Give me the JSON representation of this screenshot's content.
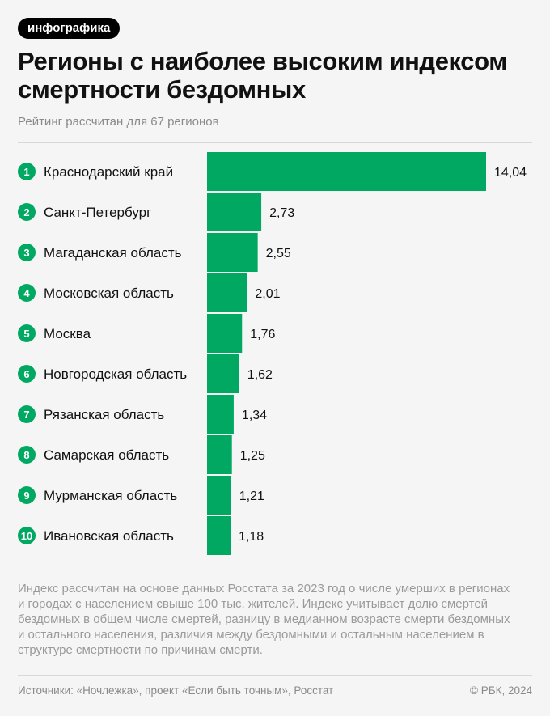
{
  "badge": "инфографика",
  "title": "Регионы с наиболее высоким индексом смертности бездомных",
  "subtitle": "Рейтинг рассчитан для 67 регионов",
  "colors": {
    "bar": "#00a862",
    "rank_circle": "#00a862",
    "background": "#f5f5f5"
  },
  "chart_data": {
    "type": "bar",
    "orientation": "horizontal",
    "title": "Регионы с наиболее высоким индексом смертности бездомных",
    "ranks": [
      "1",
      "2",
      "3",
      "4",
      "5",
      "6",
      "7",
      "8",
      "9",
      "10"
    ],
    "categories": [
      "Краснодарский край",
      "Санкт-Петербург",
      "Магаданская область",
      "Московская область",
      "Москва",
      "Новгородская область",
      "Рязанская область",
      "Самарская область",
      "Мурманская область",
      "Ивановская область"
    ],
    "values": [
      14.04,
      2.73,
      2.55,
      2.01,
      1.76,
      1.62,
      1.34,
      1.25,
      1.21,
      1.18
    ],
    "value_labels": [
      "14,04",
      "2,73",
      "2,55",
      "2,01",
      "1,76",
      "1,62",
      "1,34",
      "1,25",
      "1,21",
      "1,18"
    ],
    "xlim": [
      0,
      14.04
    ],
    "grid": false,
    "legend": "none"
  },
  "note": "Индекс рассчитан на основе данных Росстата за 2023 год о числе умерших в регионах и городах с населением свыше 100 тыс. жителей. Индекс учитывает долю смертей бездомных в общем числе смертей, разницу в медианном возрасте смерти бездомных и остального населения, различия между бездомными и остальным населением в структуре смертности по причинам смерти.",
  "footer": {
    "sources": "Источники: «Ночлежка», проект «Если быть точным», Росстат",
    "copyright": "© РБК, 2024"
  }
}
